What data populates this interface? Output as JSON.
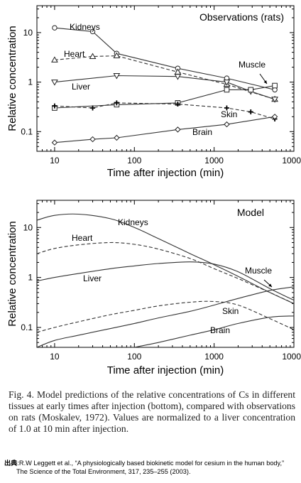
{
  "chart_data": [
    {
      "type": "line",
      "title": "Observations (rats)",
      "xlabel": "Time after injection (min)",
      "ylabel": "Relative concentration",
      "xscale": "log",
      "yscale": "log",
      "xlim": [
        6,
        10000
      ],
      "ylim": [
        0.04,
        35
      ],
      "xticks": [
        "10",
        "100",
        "1000",
        "10000"
      ],
      "yticks": [
        "0.1",
        "1",
        "10"
      ],
      "series": [
        {
          "name": "Kidneys",
          "marker": "circle",
          "line": "solid",
          "x": [
            10,
            30,
            60,
            350,
            1440,
            5760
          ],
          "y": [
            12.5,
            10.5,
            3.8,
            1.9,
            1.2,
            0.7
          ]
        },
        {
          "name": "Heart",
          "marker": "triangle-up",
          "line": "dashed",
          "x": [
            10,
            30,
            60,
            350,
            1440,
            5760
          ],
          "y": [
            2.8,
            3.3,
            3.4,
            1.6,
            0.9,
            0.45
          ]
        },
        {
          "name": "Liver",
          "marker": "triangle-down",
          "line": "solid",
          "x": [
            10,
            60,
            350,
            1440,
            2880,
            5760
          ],
          "y": [
            1.0,
            1.35,
            1.3,
            1.0,
            0.65,
            0.45
          ]
        },
        {
          "name": "Muscle",
          "marker": "square",
          "line": "solid",
          "x": [
            10,
            60,
            350,
            1440,
            2880,
            5760
          ],
          "y": [
            0.3,
            0.35,
            0.38,
            0.7,
            0.7,
            0.85
          ]
        },
        {
          "name": "Skin",
          "marker": "plus",
          "line": "dashed",
          "x": [
            10,
            30,
            60,
            350,
            1440,
            2880,
            5760
          ],
          "y": [
            0.33,
            0.3,
            0.38,
            0.36,
            0.3,
            0.25,
            0.18
          ]
        },
        {
          "name": "Brain",
          "marker": "diamond",
          "line": "solid",
          "x": [
            10,
            30,
            60,
            350,
            1440,
            5760
          ],
          "y": [
            0.06,
            0.07,
            0.075,
            0.11,
            0.14,
            0.2
          ]
        }
      ]
    },
    {
      "type": "line",
      "title": "Model",
      "xlabel": "Time after injection (min)",
      "ylabel": "Relative concentration",
      "xscale": "log",
      "yscale": "log",
      "xlim": [
        6,
        10000
      ],
      "ylim": [
        0.04,
        35
      ],
      "xticks": [
        "10",
        "100",
        "1000",
        "10000"
      ],
      "yticks": [
        "0.1",
        "1",
        "10"
      ],
      "series": [
        {
          "name": "Kidneys",
          "line": "solid",
          "x": [
            6,
            10,
            20,
            50,
            100,
            200,
            500,
            1000,
            2000,
            5000,
            10000
          ],
          "y": [
            14,
            17.5,
            18.5,
            15,
            10,
            6,
            3,
            1.8,
            1.05,
            0.5,
            0.3
          ]
        },
        {
          "name": "Heart",
          "line": "dashed",
          "x": [
            6,
            10,
            20,
            50,
            100,
            200,
            500,
            1000,
            2000,
            5000,
            10000
          ],
          "y": [
            3,
            3.8,
            4.5,
            5,
            4.6,
            3.7,
            2.4,
            1.5,
            0.95,
            0.5,
            0.3
          ]
        },
        {
          "name": "Liver",
          "line": "solid",
          "x": [
            6,
            10,
            20,
            50,
            100,
            200,
            500,
            1000,
            2000,
            5000,
            10000
          ],
          "y": [
            0.85,
            1.0,
            1.2,
            1.5,
            1.7,
            1.9,
            2.05,
            1.85,
            1.3,
            0.6,
            0.35
          ]
        },
        {
          "name": "Muscle",
          "line": "solid",
          "x": [
            6,
            10,
            20,
            50,
            100,
            200,
            500,
            1000,
            2000,
            5000,
            10000
          ],
          "y": [
            0.04,
            0.055,
            0.07,
            0.095,
            0.12,
            0.155,
            0.21,
            0.28,
            0.38,
            0.55,
            0.65
          ]
        },
        {
          "name": "Skin",
          "line": "dashed",
          "x": [
            6,
            10,
            20,
            50,
            100,
            200,
            500,
            1000,
            2000,
            5000,
            10000
          ],
          "y": [
            0.08,
            0.1,
            0.13,
            0.18,
            0.22,
            0.27,
            0.32,
            0.33,
            0.28,
            0.15,
            0.09
          ]
        },
        {
          "name": "Brain",
          "line": "solid",
          "x": [
            100,
            200,
            500,
            1000,
            2000,
            5000,
            10000
          ],
          "y": [
            0.04,
            0.05,
            0.07,
            0.09,
            0.12,
            0.16,
            0.17
          ]
        }
      ]
    }
  ],
  "caption": "Fig. 4. Model predictions of the relative concentrations of Cs in different tissues at early times after injection (bottom), compared with observations on rats (Moskalev, 1972). Values are normalized to a liver concentration of 1.0 at 10 min after injection.",
  "source": {
    "label": "出典",
    "line1": ":R.W Leggett et al., “A physiologically based biokinetic model for cesium in the human body,”",
    "line2": "The Science of the Total Environment, 317, 235–255 (2003)."
  }
}
